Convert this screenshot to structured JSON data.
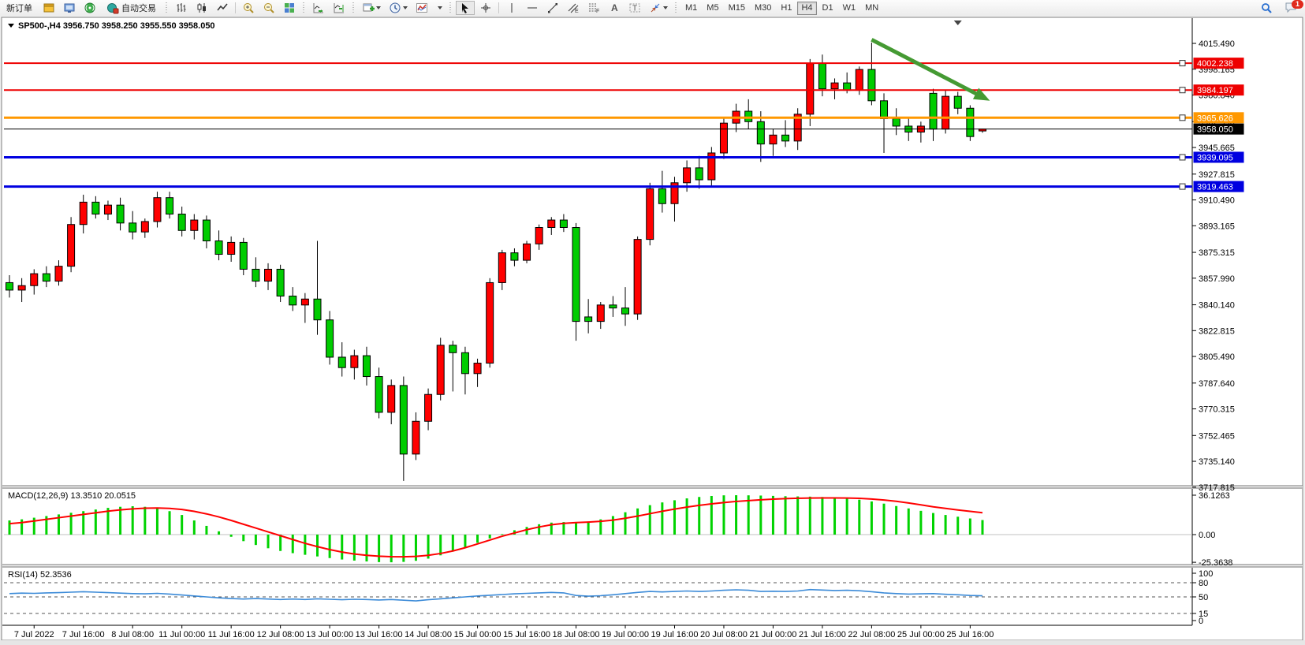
{
  "toolbar": {
    "new_order_label": "新订单",
    "auto_trading_label": "自动交易",
    "icons": [
      "market-watch-icon",
      "terminal-icon",
      "signals-icon",
      "autotrade-icon",
      "bars-chart-icon",
      "candles-chart-icon",
      "line-chart-icon",
      "zoom-in-icon",
      "zoom-out-icon",
      "tile-windows-icon",
      "auto-scroll-icon",
      "chart-shift-icon",
      "new-chart-icon",
      "periods-icon",
      "indicators-icon",
      "cursor-icon",
      "crosshair-icon",
      "vertical-line-icon",
      "horizontal-line-icon",
      "trendline-icon",
      "channel-icon",
      "fibonacci-icon",
      "text-icon",
      "label-icon",
      "arrows-icon",
      "search-icon",
      "chat-icon"
    ],
    "timeframes": [
      "M1",
      "M5",
      "M15",
      "M30",
      "H1",
      "H4",
      "D1",
      "W1",
      "MN"
    ],
    "active_timeframe": "H4",
    "notification_badge": "1"
  },
  "chart": {
    "title": "SP500-,H4  3956.750 3958.250 3955.550 3958.050",
    "symbol": "SP500-",
    "period": "H4",
    "ohlc": {
      "open": "3956.750",
      "high": "3958.250",
      "low": "3955.550",
      "close": "3958.050"
    }
  },
  "chart_data": {
    "type": "candlestick",
    "title": "SP500- H4 candlestick chart with MACD and RSI",
    "grid": false,
    "bull_color": "#ff0000",
    "bear_color": "#00cc00",
    "wick_color": "#000000",
    "price_range": [
      3717.815,
      4031.38
    ],
    "price_axis_ticks": [
      "4015.490",
      "3998.165",
      "3980.840",
      "3962.990",
      "3945.665",
      "3927.815",
      "3910.490",
      "3893.165",
      "3875.315",
      "3857.990",
      "3840.140",
      "3822.815",
      "3805.490",
      "3787.640",
      "3770.315",
      "3752.465",
      "3735.140",
      "3717.815"
    ],
    "time_labels": [
      "7 Jul 2022",
      "7 Jul 16:00",
      "8 Jul 08:00",
      "11 Jul 00:00",
      "11 Jul 16:00",
      "12 Jul 08:00",
      "13 Jul 00:00",
      "13 Jul 16:00",
      "14 Jul 08:00",
      "15 Jul 00:00",
      "15 Jul 16:00",
      "18 Jul 08:00",
      "19 Jul 00:00",
      "19 Jul 16:00",
      "20 Jul 08:00",
      "21 Jul 00:00",
      "21 Jul 16:00",
      "22 Jul 08:00",
      "25 Jul 00:00",
      "25 Jul 16:00"
    ],
    "x_label_indices": [
      2,
      6,
      10,
      14,
      18,
      22,
      26,
      30,
      34,
      38,
      42,
      46,
      50,
      54,
      58,
      62,
      66,
      70,
      74,
      78
    ],
    "candles": [
      [
        3855,
        3860,
        3845,
        3850
      ],
      [
        3850,
        3858,
        3842,
        3853
      ],
      [
        3853,
        3864,
        3847,
        3861
      ],
      [
        3861,
        3866,
        3852,
        3856
      ],
      [
        3856,
        3870,
        3853,
        3866
      ],
      [
        3866,
        3899,
        3862,
        3894
      ],
      [
        3894,
        3914,
        3888,
        3909
      ],
      [
        3909,
        3913,
        3898,
        3901
      ],
      [
        3901,
        3910,
        3897,
        3907
      ],
      [
        3907,
        3912,
        3890,
        3895
      ],
      [
        3895,
        3903,
        3884,
        3889
      ],
      [
        3889,
        3898,
        3885,
        3896
      ],
      [
        3896,
        3916,
        3892,
        3912
      ],
      [
        3912,
        3916,
        3898,
        3901
      ],
      [
        3901,
        3906,
        3886,
        3890
      ],
      [
        3890,
        3901,
        3884,
        3897
      ],
      [
        3897,
        3900,
        3878,
        3883
      ],
      [
        3883,
        3890,
        3870,
        3874
      ],
      [
        3874,
        3886,
        3869,
        3882
      ],
      [
        3882,
        3885,
        3860,
        3864
      ],
      [
        3864,
        3872,
        3852,
        3856
      ],
      [
        3856,
        3868,
        3850,
        3864
      ],
      [
        3864,
        3867,
        3842,
        3846
      ],
      [
        3846,
        3852,
        3836,
        3840
      ],
      [
        3840,
        3848,
        3828,
        3844
      ],
      [
        3844,
        3883,
        3820,
        3830
      ],
      [
        3830,
        3836,
        3800,
        3805
      ],
      [
        3805,
        3815,
        3792,
        3798
      ],
      [
        3798,
        3810,
        3790,
        3806
      ],
      [
        3806,
        3812,
        3786,
        3792
      ],
      [
        3792,
        3798,
        3764,
        3768
      ],
      [
        3768,
        3790,
        3760,
        3786
      ],
      [
        3786,
        3792,
        3722,
        3740
      ],
      [
        3740,
        3768,
        3736,
        3762
      ],
      [
        3762,
        3784,
        3756,
        3780
      ],
      [
        3780,
        3818,
        3776,
        3813
      ],
      [
        3813,
        3816,
        3782,
        3808
      ],
      [
        3808,
        3812,
        3780,
        3794
      ],
      [
        3794,
        3804,
        3785,
        3801
      ],
      [
        3801,
        3858,
        3798,
        3855
      ],
      [
        3855,
        3877,
        3850,
        3875
      ],
      [
        3875,
        3878,
        3866,
        3870
      ],
      [
        3870,
        3883,
        3868,
        3881
      ],
      [
        3881,
        3894,
        3877,
        3892
      ],
      [
        3892,
        3899,
        3887,
        3897
      ],
      [
        3897,
        3901,
        3889,
        3892
      ],
      [
        3892,
        3895,
        3816,
        3829
      ],
      [
        3832,
        3844,
        3821,
        3829
      ],
      [
        3829,
        3842,
        3824,
        3840
      ],
      [
        3840,
        3846,
        3832,
        3838
      ],
      [
        3838,
        3852,
        3826,
        3834
      ],
      [
        3834,
        3886,
        3830,
        3884
      ],
      [
        3884,
        3922,
        3880,
        3918
      ],
      [
        3918,
        3930,
        3902,
        3908
      ],
      [
        3908,
        3926,
        3896,
        3922
      ],
      [
        3922,
        3937,
        3916,
        3932
      ],
      [
        3932,
        3940,
        3918,
        3924
      ],
      [
        3924,
        3946,
        3920,
        3942
      ],
      [
        3942,
        3966,
        3938,
        3962
      ],
      [
        3962,
        3975,
        3956,
        3970
      ],
      [
        3970,
        3978,
        3958,
        3963
      ],
      [
        3963,
        3970,
        3936,
        3948
      ],
      [
        3948,
        3958,
        3940,
        3954
      ],
      [
        3954,
        3964,
        3946,
        3950
      ],
      [
        3950,
        3972,
        3944,
        3968
      ],
      [
        3968,
        4005,
        3960,
        4002
      ],
      [
        4002,
        4008,
        3980,
        3985
      ],
      [
        3985,
        3992,
        3978,
        3989
      ],
      [
        3989,
        3996,
        3982,
        3984
      ],
      [
        3984,
        4000,
        3981,
        3998
      ],
      [
        3998,
        4016,
        3974,
        3977
      ],
      [
        3977,
        3982,
        3942,
        3965
      ],
      [
        3965,
        3972,
        3954,
        3960
      ],
      [
        3960,
        3966,
        3950,
        3956
      ],
      [
        3956,
        3963,
        3949,
        3960
      ],
      [
        3982,
        3985,
        3950,
        3958
      ],
      [
        3958,
        3984,
        3955,
        3980
      ],
      [
        3980,
        3983,
        3968,
        3972
      ],
      [
        3972,
        3974,
        3950,
        3953
      ],
      [
        3956.75,
        3958.25,
        3955.55,
        3958.05
      ]
    ],
    "horizontal_lines": [
      {
        "price": 4002.238,
        "label": "4002.238",
        "color": "#ee0000",
        "width": 2,
        "name": "resistance-line-1"
      },
      {
        "price": 3984.197,
        "label": "3984.197",
        "color": "#ee0000",
        "width": 2,
        "name": "resistance-line-2"
      },
      {
        "price": 3965.626,
        "label": "3965.626",
        "color": "#ff9800",
        "width": 3,
        "name": "pivot-line"
      },
      {
        "price": 3939.095,
        "label": "3939.095",
        "color": "#0000e0",
        "width": 3,
        "name": "support-line-1"
      },
      {
        "price": 3919.463,
        "label": "3919.463",
        "color": "#0000e0",
        "width": 3,
        "name": "support-line-2"
      }
    ],
    "current_price": {
      "value": 3958.05,
      "label": "3958.050",
      "color": "#000000"
    },
    "trend_arrow": {
      "from_index": 70,
      "from_price": 4018,
      "to_index": 79.6,
      "to_price": 3977,
      "color": "#459a33"
    },
    "shift_marker_index": 77,
    "macd": {
      "label_full": "MACD(12,26,9) 13.3510 20.0515",
      "label": "MACD(12,26,9)",
      "macd_value": "13.3510",
      "signal_value": "20.0515",
      "ylim": [
        -28.9,
        43.36
      ],
      "axis_ticks": [
        {
          "v": 36.1263,
          "label": "36.1263"
        },
        {
          "v": 0,
          "label": "0.00"
        },
        {
          "v": -25.3638,
          "label": "-25.3638"
        }
      ],
      "histogram_color": "#00d300",
      "signal_color": "#ff0000",
      "histogram": [
        13,
        14,
        15.5,
        17,
        18.5,
        20,
        21.5,
        23,
        24.5,
        25.5,
        26,
        25.5,
        24,
        21.5,
        18,
        13,
        8,
        3,
        -2,
        -6,
        -9.5,
        -12.5,
        -15,
        -17,
        -18.5,
        -20,
        -21.5,
        -22.8,
        -23.8,
        -24.6,
        -25.2,
        -25.36,
        -25,
        -24,
        -22,
        -19,
        -15.5,
        -11.5,
        -7.5,
        -3.5,
        0.5,
        4,
        7,
        9.5,
        11,
        11.5,
        11,
        12,
        14,
        17,
        20.5,
        24,
        27,
        29.5,
        31.5,
        33.2,
        34.5,
        35.4,
        36,
        36.1,
        36,
        35.8,
        35.5,
        35.2,
        35,
        34.8,
        34.5,
        34,
        33.2,
        32,
        30.4,
        28.4,
        26.2,
        24,
        21.8,
        19.8,
        18,
        16.4,
        14.8,
        13.35
      ],
      "signal": [
        10,
        11,
        12.5,
        14,
        15.5,
        17,
        18.5,
        20,
        21.5,
        22.7,
        23.6,
        24.2,
        24.4,
        24,
        23,
        21.3,
        19,
        16.2,
        13,
        9.5,
        6,
        2.5,
        -1,
        -4.5,
        -8,
        -11,
        -13.7,
        -16,
        -17.8,
        -19,
        -19.8,
        -20.2,
        -20.3,
        -20,
        -19,
        -17.3,
        -15,
        -12,
        -8.5,
        -5,
        -1.5,
        1.5,
        4.5,
        7,
        9,
        10.3,
        11,
        11.5,
        12.2,
        13.3,
        15,
        17,
        19.2,
        21.4,
        23.4,
        25.2,
        26.8,
        28.2,
        29.4,
        30.4,
        31.2,
        31.9,
        32.5,
        33,
        33.3,
        33.5,
        33.6,
        33.6,
        33.5,
        33.2,
        32.6,
        31.7,
        30.5,
        29,
        27.3,
        25.5,
        24,
        22.6,
        21.3,
        20.05
      ]
    },
    "rsi": {
      "label_full": "RSI(14) 52.3536",
      "label": "RSI(14)",
      "value": "52.3536",
      "ylim": [
        -10,
        115
      ],
      "line_color": "#3c8bd8",
      "levels": [
        80,
        50,
        15
      ],
      "axis_labels": [
        {
          "v": 100,
          "label": "100"
        },
        {
          "v": 80,
          "label": "80"
        },
        {
          "v": 50,
          "label": "50"
        },
        {
          "v": 15,
          "label": "15"
        },
        {
          "v": 0,
          "label": "0"
        }
      ],
      "values": [
        57,
        58,
        57.5,
        58.5,
        59,
        60,
        61,
        60,
        59,
        58,
        57,
        56.5,
        57.5,
        56,
        54,
        52,
        50,
        48,
        46.5,
        45.5,
        46.5,
        45.5,
        44.5,
        45.5,
        44.5,
        46,
        45,
        44,
        45,
        44.5,
        43.5,
        44.5,
        43,
        41.5,
        44,
        46,
        48,
        50,
        52,
        53.5,
        55,
        56.5,
        57.5,
        58.5,
        59.5,
        58.5,
        53,
        51.5,
        52.5,
        54.5,
        57,
        59.5,
        61.5,
        60.5,
        61.5,
        62.5,
        61.5,
        62.5,
        64,
        65,
        64,
        61.5,
        62,
        61.5,
        62.5,
        65.5,
        64.5,
        63.5,
        64,
        63,
        61,
        58.5,
        57,
        56,
        56.5,
        57,
        55.5,
        54.5,
        53,
        52.35
      ]
    }
  }
}
